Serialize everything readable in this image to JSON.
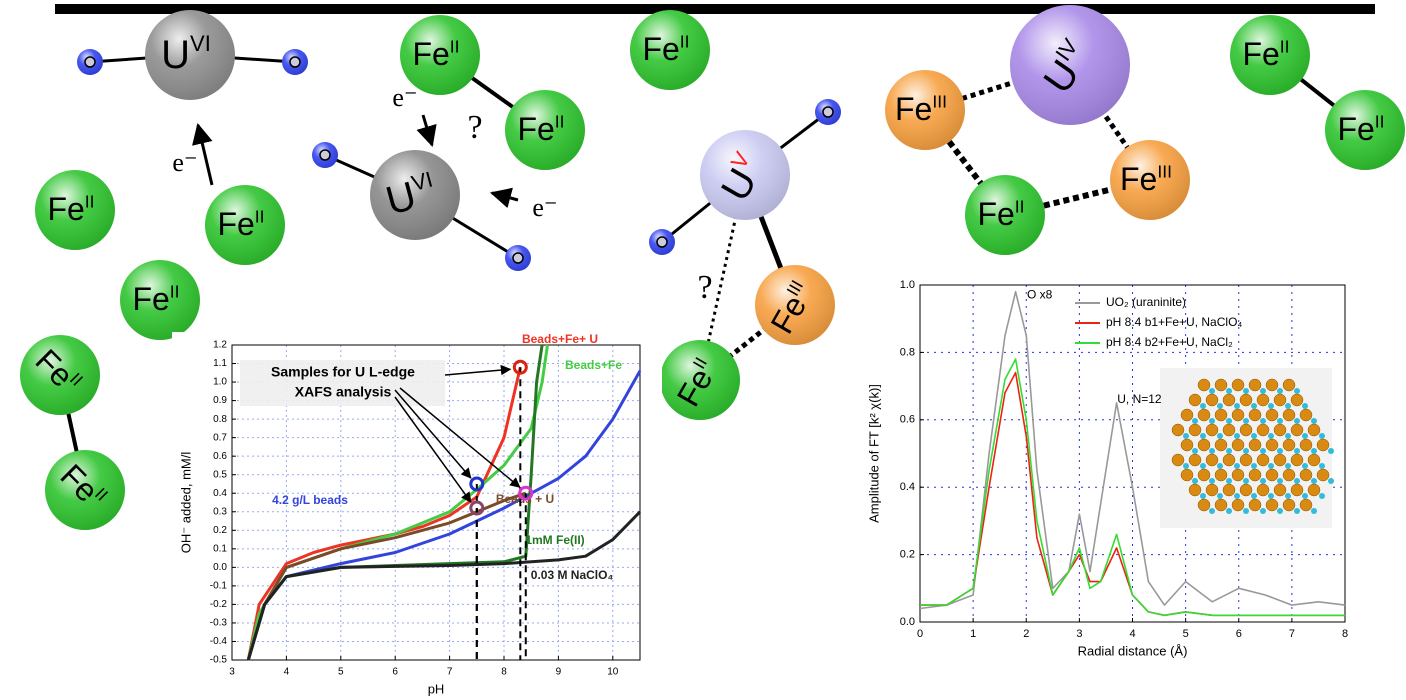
{
  "nodes": [
    {
      "element": "U",
      "ox": "VI",
      "color": "#8f8f8f"
    },
    {
      "element": "U",
      "ox": "VI",
      "color": "#8a8a8a"
    },
    {
      "element": "U",
      "ox": "V",
      "color": "#c9c9f2",
      "ox_color": "#ff2020"
    },
    {
      "element": "U",
      "ox": "IV",
      "color": "#a98ae8"
    },
    {
      "element": "Fe",
      "ox": "II",
      "color": "#2fc42f"
    },
    {
      "element": "Fe",
      "ox": "II",
      "color": "#2fc42f"
    },
    {
      "element": "Fe",
      "ox": "II",
      "color": "#2fc42f"
    },
    {
      "element": "Fe",
      "ox": "II",
      "color": "#2fc42f"
    },
    {
      "element": "Fe",
      "ox": "II",
      "color": "#2fc42f"
    },
    {
      "element": "Fe",
      "ox": "II",
      "color": "#2fc42f"
    },
    {
      "element": "Fe",
      "ox": "II",
      "color": "#2fc42f"
    },
    {
      "element": "Fe",
      "ox": "II",
      "color": "#2fc42f"
    },
    {
      "element": "Fe",
      "ox": "II",
      "color": "#2fc42f"
    },
    {
      "element": "Fe",
      "ox": "II",
      "color": "#2fc42f"
    },
    {
      "element": "Fe",
      "ox": "II",
      "color": "#2fc42f"
    },
    {
      "element": "Fe",
      "ox": "II",
      "color": "#2fc42f"
    },
    {
      "element": "Fe",
      "ox": "III",
      "color": "#f7a040"
    },
    {
      "element": "Fe",
      "ox": "III",
      "color": "#f7a040"
    },
    {
      "element": "Fe",
      "ox": "III",
      "color": "#f7a040"
    }
  ],
  "electrons": [
    "e⁻",
    "e⁻",
    "e⁻"
  ],
  "questions": [
    "?",
    "?"
  ],
  "chart_data": [
    {
      "type": "line",
      "xlabel": "pH",
      "ylabel": "OH⁻ added, mM/l",
      "xlim": [
        3,
        10.5
      ],
      "ylim": [
        -0.5,
        1.2
      ],
      "xticks": [
        3,
        4,
        5,
        6,
        7,
        8,
        9,
        10
      ],
      "yticks": [
        -0.5,
        -0.4,
        -0.3,
        -0.2,
        -0.1,
        {
          "value": 0,
          "label": "0.0"
        },
        0.1,
        0.2,
        0.3,
        0.4,
        0.5,
        0.6,
        0.7,
        0.8,
        0.9,
        {
          "value": 1,
          "label": "1.0"
        },
        1.1,
        1.2
      ],
      "grid": true,
      "series": [
        {
          "name": "Beads+Fe+ U",
          "color": "#ee3322",
          "x": [
            3.3,
            3.5,
            4,
            4.5,
            5,
            5.5,
            6,
            6.5,
            7,
            7.5,
            8,
            8.3
          ],
          "values": [
            -0.5,
            -0.2,
            0.02,
            0.08,
            0.12,
            0.15,
            0.18,
            0.22,
            0.28,
            0.38,
            0.7,
            1.08
          ]
        },
        {
          "name": "Beads+Fe",
          "color": "#44cc44",
          "x": [
            3.3,
            3.5,
            4,
            5,
            6,
            7,
            7.5,
            8,
            8.5,
            8.7,
            8.8
          ],
          "values": [
            -0.5,
            -0.25,
            0,
            0.1,
            0.18,
            0.3,
            0.42,
            0.55,
            0.75,
            1,
            1.2
          ]
        },
        {
          "name": "4.2 g/L beads",
          "color": "#3344dd",
          "x": [
            3.3,
            3.6,
            4,
            5,
            6,
            7,
            8,
            9,
            9.5,
            10,
            10.5
          ],
          "values": [
            -0.5,
            -0.2,
            -0.05,
            0.02,
            0.08,
            0.18,
            0.32,
            0.48,
            0.6,
            0.8,
            1.06
          ]
        },
        {
          "name": "Beads + U",
          "color": "#7a4a2a",
          "x": [
            3.3,
            3.6,
            4,
            5,
            6,
            7,
            7.5,
            8,
            8.4
          ],
          "values": [
            -0.5,
            -0.2,
            0,
            0.1,
            0.16,
            0.24,
            0.3,
            0.36,
            0.4
          ]
        },
        {
          "name": "1mM Fe(II)",
          "color": "#227722",
          "x": [
            3.3,
            3.6,
            4,
            5,
            6,
            7,
            8,
            8.4,
            8.5,
            8.6,
            8.7
          ],
          "values": [
            -0.5,
            -0.2,
            -0.05,
            0,
            0.01,
            0.02,
            0.03,
            0.06,
            0.5,
            1,
            1.2
          ]
        },
        {
          "name": "0.03 M NaClO₄",
          "color": "#222222",
          "x": [
            3.3,
            3.6,
            4,
            5,
            6,
            7,
            8,
            9,
            9.5,
            10,
            10.5
          ],
          "values": [
            -0.5,
            -0.2,
            -0.05,
            0,
            0.005,
            0.01,
            0.02,
            0.04,
            0.06,
            0.15,
            0.3
          ]
        }
      ],
      "samples": {
        "x": [
          7.5,
          7.5,
          8.3,
          8.4
        ],
        "values": [
          0.32,
          0.45,
          1.08,
          0.4
        ],
        "colors": [
          "#884466",
          "#2233cc",
          "#dd2211",
          "#dd33cc"
        ]
      },
      "annotation": [
        "Samples for U L-edge",
        "XAFS analysis"
      ]
    },
    {
      "type": "line",
      "xlabel": "Radial distance (Å)",
      "ylabel": "Amplitude of FT [k² χ(k)]",
      "xlim": [
        0,
        8
      ],
      "ylim": [
        0,
        1
      ],
      "xticks": [
        0,
        1,
        2,
        3,
        4,
        5,
        6,
        7,
        8
      ],
      "yticks": [
        {
          "value": 0,
          "label": "0.0"
        },
        0.2,
        0.4,
        0.6,
        0.8,
        {
          "value": 1,
          "label": "1.0"
        }
      ],
      "grid": true,
      "series": [
        {
          "name": "UO₂ (uraninite)",
          "color": "#999999",
          "x": [
            0,
            0.5,
            1,
            1.3,
            1.6,
            1.8,
            2,
            2.2,
            2.5,
            2.8,
            3,
            3.2,
            3.4,
            3.7,
            4,
            4.3,
            4.6,
            5,
            5.5,
            6,
            6.5,
            7,
            7.5,
            8
          ],
          "values": [
            0.04,
            0.05,
            0.08,
            0.5,
            0.85,
            0.98,
            0.85,
            0.45,
            0.1,
            0.15,
            0.32,
            0.15,
            0.35,
            0.65,
            0.4,
            0.12,
            0.05,
            0.12,
            0.06,
            0.1,
            0.08,
            0.05,
            0.06,
            0.05
          ]
        },
        {
          "name": "pH 8.4 b1+Fe+U, NaClO₄",
          "color": "#ee2211",
          "x": [
            0,
            0.5,
            1,
            1.3,
            1.6,
            1.8,
            2,
            2.2,
            2.5,
            2.8,
            3,
            3.2,
            3.4,
            3.7,
            4,
            4.3,
            4.6,
            5,
            5.5,
            6,
            6.5,
            7,
            7.5,
            8
          ],
          "values": [
            0.05,
            0.05,
            0.1,
            0.4,
            0.68,
            0.74,
            0.55,
            0.25,
            0.08,
            0.15,
            0.2,
            0.12,
            0.12,
            0.22,
            0.08,
            0.03,
            0.02,
            0.03,
            0.02,
            0.02,
            0.02,
            0.02,
            0.02,
            0.02
          ]
        },
        {
          "name": "pH 8.4 b2+Fe+U, NaCl₂",
          "color": "#33dd33",
          "x": [
            0,
            0.5,
            1,
            1.3,
            1.6,
            1.8,
            2,
            2.2,
            2.5,
            2.8,
            3,
            3.2,
            3.4,
            3.7,
            4,
            4.3,
            4.6,
            5,
            5.5,
            6,
            6.5,
            7,
            7.5,
            8
          ],
          "values": [
            0.05,
            0.05,
            0.1,
            0.45,
            0.72,
            0.78,
            0.6,
            0.3,
            0.08,
            0.15,
            0.22,
            0.1,
            0.12,
            0.26,
            0.08,
            0.03,
            0.02,
            0.03,
            0.02,
            0.02,
            0.02,
            0.02,
            0.02,
            0.02
          ]
        }
      ],
      "annotations": [
        {
          "text": "O x8",
          "x": 1.9,
          "y": 0.97
        },
        {
          "text": "U, N=12",
          "x": 3.6,
          "y": 0.66
        }
      ]
    }
  ]
}
